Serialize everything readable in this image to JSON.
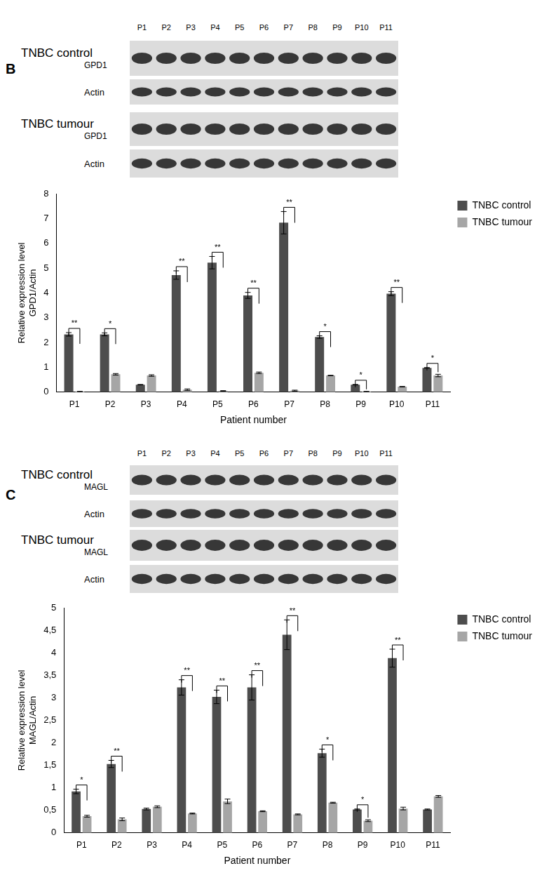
{
  "panels": [
    {
      "letter": "B",
      "lanes": [
        "P1",
        "P2",
        "P3",
        "P4",
        "P5",
        "P6",
        "P7",
        "P8",
        "P9",
        "P10",
        "P11"
      ],
      "blots": [
        {
          "label": "TNBC control",
          "protein": "GPD1"
        },
        {
          "protein": "Actin"
        },
        {
          "label": "TNBC tumour",
          "protein": "GPD1"
        },
        {
          "protein": "Actin"
        }
      ]
    },
    {
      "letter": "C",
      "lanes": [
        "P1",
        "P2",
        "P3",
        "P4",
        "P5",
        "P6",
        "P7",
        "P8",
        "P9",
        "P10",
        "P11"
      ],
      "blots": [
        {
          "label": "TNBC control",
          "protein": "MAGL"
        },
        {
          "protein": "Actin"
        },
        {
          "label": "TNBC tumour",
          "protein": "MAGL"
        },
        {
          "protein": "Actin"
        }
      ]
    }
  ],
  "chart_data": [
    {
      "type": "bar",
      "x_label": "Patient number",
      "y_label": [
        "Relative expression level",
        "GPD1/Actin"
      ],
      "categories": [
        "P1",
        "P2",
        "P3",
        "P4",
        "P5",
        "P6",
        "P7",
        "P8",
        "P9",
        "P10",
        "P11"
      ],
      "series": [
        {
          "name": "TNBC control",
          "color": "#4d4d4d",
          "values": [
            2.33,
            2.33,
            0.3,
            4.72,
            5.22,
            3.9,
            6.83,
            2.22,
            0.3,
            3.97,
            0.98
          ],
          "errors": [
            0.07,
            0.06,
            0.01,
            0.17,
            0.25,
            0.12,
            0.45,
            0.05,
            0.01,
            0.08,
            0.01
          ]
        },
        {
          "name": "TNBC tumour",
          "color": "#a6a6a6",
          "values": [
            0.02,
            0.72,
            0.67,
            0.1,
            0.05,
            0.78,
            0.06,
            0.67,
            0.02,
            0.22,
            0.67
          ],
          "errors": [
            0.01,
            0.03,
            0.03,
            0.03,
            0.01,
            0.03,
            0.02,
            0.01,
            0.01,
            0.01,
            0.05
          ]
        }
      ],
      "significance": [
        "**",
        "*",
        null,
        "**",
        "**",
        "**",
        "**",
        "*",
        "*",
        "**",
        "*"
      ],
      "ylim": [
        0,
        8
      ],
      "yticks": [
        0,
        1,
        2,
        3,
        4,
        5,
        6,
        7,
        8
      ],
      "grid": false,
      "legend": "upper right"
    },
    {
      "type": "bar",
      "x_label": "Patient number",
      "y_label": [
        "Relative expression level",
        "MAGL/Actin"
      ],
      "categories": [
        "P1",
        "P2",
        "P3",
        "P4",
        "P5",
        "P6",
        "P7",
        "P8",
        "P9",
        "P10",
        "P11"
      ],
      "series": [
        {
          "name": "TNBC control",
          "color": "#4d4d4d",
          "values": [
            0.92,
            1.53,
            0.53,
            3.23,
            3.02,
            3.23,
            4.4,
            1.77,
            0.52,
            3.88,
            0.52
          ],
          "errors": [
            0.05,
            0.08,
            0.02,
            0.17,
            0.15,
            0.28,
            0.33,
            0.09,
            0.01,
            0.2,
            0.01
          ]
        },
        {
          "name": "TNBC tumour",
          "color": "#a6a6a6",
          "values": [
            0.37,
            0.3,
            0.58,
            0.43,
            0.7,
            0.48,
            0.41,
            0.67,
            0.27,
            0.54,
            0.81
          ],
          "errors": [
            0.02,
            0.03,
            0.02,
            0.01,
            0.05,
            0.01,
            0.01,
            0.01,
            0.02,
            0.03,
            0.02
          ]
        }
      ],
      "significance": [
        "*",
        "**",
        null,
        "**",
        "**",
        "**",
        "**",
        "*",
        "*",
        "**",
        null
      ],
      "ylim": [
        0,
        5
      ],
      "yticks": [
        0,
        {
          "value": 0.5,
          "label": "0,5"
        },
        1,
        {
          "value": 1.5,
          "label": "1,5"
        },
        2,
        {
          "value": 2.5,
          "label": "2,5"
        },
        3,
        {
          "value": 3.5,
          "label": "3,5"
        },
        4,
        {
          "value": 4.5,
          "label": "4,5"
        },
        5
      ],
      "grid": false,
      "legend": "upper right"
    }
  ]
}
